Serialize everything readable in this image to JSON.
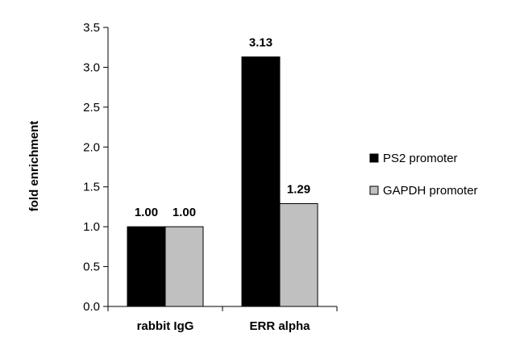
{
  "chart_data": {
    "type": "bar",
    "title": "",
    "xlabel": "",
    "ylabel": "fold enrichment",
    "categories": [
      "rabbit IgG",
      "ERR alpha"
    ],
    "series": [
      {
        "name": "PS2 promoter",
        "values": [
          1.0,
          3.13
        ],
        "labels": [
          "1.00",
          "3.13"
        ],
        "color": "#000000"
      },
      {
        "name": "GAPDH promoter",
        "values": [
          1.0,
          1.29
        ],
        "labels": [
          "1.00",
          "1.29"
        ],
        "color": "#c0c0c0"
      }
    ],
    "ylim": [
      0,
      3.5
    ],
    "yticks": [
      "0.0",
      "0.5",
      "1.0",
      "1.5",
      "2.0",
      "2.5",
      "3.0",
      "3.5"
    ],
    "grid": false,
    "legend_position": "right"
  }
}
